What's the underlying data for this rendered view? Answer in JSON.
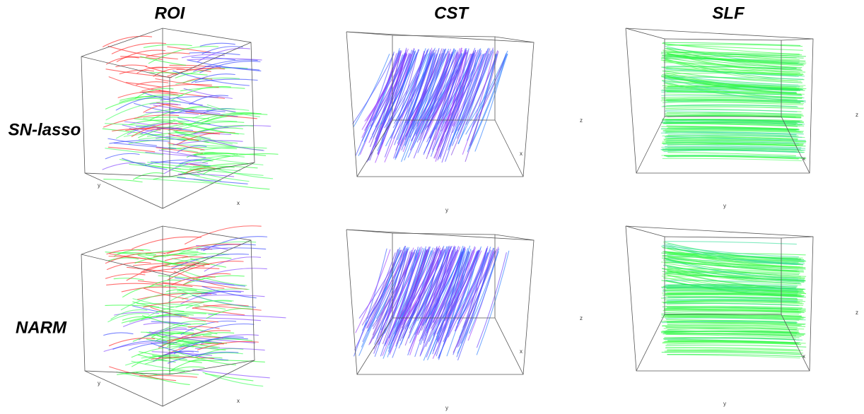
{
  "columns": [
    "ROI",
    "CST",
    "SLF"
  ],
  "rows": [
    "SN-lasso",
    "NARM"
  ],
  "panels": [
    [
      {
        "axis_labels": [
          "y",
          "x"
        ]
      },
      {
        "axis_labels": [
          "z",
          "x",
          "y"
        ]
      },
      {
        "axis_labels": [
          "z",
          "x",
          "y"
        ]
      }
    ],
    [
      {
        "axis_labels": [
          "y",
          "x"
        ]
      },
      {
        "axis_labels": [
          "z",
          "x",
          "y"
        ]
      },
      {
        "axis_labels": [
          "z",
          "x",
          "y"
        ]
      }
    ]
  ]
}
